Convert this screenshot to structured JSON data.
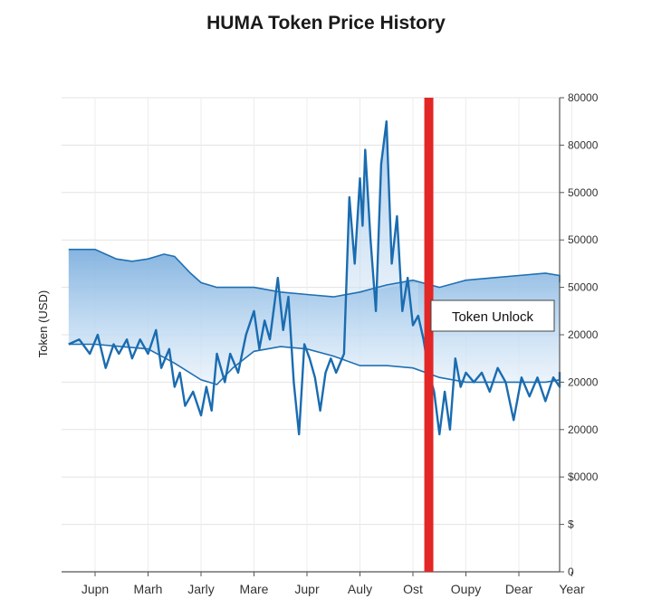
{
  "chart_data": {
    "type": "line",
    "title": "HUMA Token Price History",
    "ylabel": "Token (USD)",
    "xlabel": "",
    "x_ticks": [
      "Jupn",
      "Marh",
      "Jarly",
      "Mare",
      "Jupr",
      "Auly",
      "Ost",
      "Oupy",
      "Dear",
      "Year"
    ],
    "y_ticks": [
      "0",
      "$",
      "$0000",
      "20000",
      "20000",
      "20000",
      "50000",
      "50000",
      "50000",
      "80000",
      "80000"
    ],
    "ylim": [
      0,
      10
    ],
    "grid": true,
    "legend": "none",
    "annotation": {
      "label": "Token Unlock",
      "x": 6.3
    },
    "band_upper": {
      "x": [
        -0.5,
        0.0,
        0.4,
        0.7,
        1.0,
        1.3,
        1.5,
        1.8,
        2.0,
        2.3,
        2.5,
        3.0,
        3.5,
        4.0,
        4.5,
        5.0,
        5.5,
        6.0,
        6.5,
        7.0,
        7.5,
        8.0,
        8.5,
        8.8,
        9.0
      ],
      "y": [
        6.8,
        6.8,
        6.6,
        6.55,
        6.6,
        6.7,
        6.65,
        6.3,
        6.1,
        6.0,
        6.0,
        6.0,
        5.9,
        5.85,
        5.8,
        5.9,
        6.05,
        6.15,
        6.0,
        6.15,
        6.2,
        6.25,
        6.3,
        6.25,
        6.1
      ]
    },
    "band_lower": {
      "x": [
        -0.5,
        0.0,
        0.5,
        1.0,
        1.5,
        2.0,
        2.3,
        2.6,
        3.0,
        3.5,
        4.0,
        4.5,
        5.0,
        5.5,
        6.0,
        6.5,
        7.0,
        7.5,
        8.0,
        8.5,
        9.0
      ],
      "y": [
        4.8,
        4.8,
        4.75,
        4.7,
        4.4,
        4.05,
        3.95,
        4.3,
        4.65,
        4.75,
        4.7,
        4.55,
        4.35,
        4.35,
        4.3,
        4.1,
        4.0,
        4.0,
        4.0,
        4.0,
        4.05
      ]
    },
    "series": [
      {
        "values_x": [
          -0.5,
          -0.3,
          -0.1,
          0.05,
          0.2,
          0.35,
          0.45,
          0.6,
          0.7,
          0.85,
          1.0,
          1.15,
          1.25,
          1.4,
          1.5,
          1.6,
          1.7,
          1.85,
          2.0,
          2.1,
          2.2,
          2.3,
          2.45,
          2.55,
          2.7,
          2.85,
          3.0,
          3.1,
          3.2,
          3.3,
          3.45,
          3.55,
          3.65,
          3.75,
          3.85,
          3.95,
          4.05,
          4.15,
          4.25,
          4.35,
          4.45,
          4.55,
          4.7,
          4.8,
          4.9,
          5.0,
          5.05,
          5.1,
          5.2,
          5.3,
          5.4,
          5.5,
          5.6,
          5.7,
          5.8,
          5.9,
          6.0,
          6.1,
          6.2,
          6.3,
          6.4,
          6.5,
          6.6,
          6.7,
          6.8,
          6.9,
          7.0,
          7.15,
          7.3,
          7.45,
          7.6,
          7.75,
          7.9,
          8.05,
          8.2,
          8.35,
          8.5,
          8.65,
          8.8,
          8.95,
          9.0
        ],
        "values_y": [
          4.8,
          4.9,
          4.6,
          5.0,
          4.3,
          4.8,
          4.6,
          4.9,
          4.5,
          4.9,
          4.6,
          5.1,
          4.3,
          4.7,
          3.9,
          4.2,
          3.5,
          3.8,
          3.3,
          3.9,
          3.4,
          4.6,
          4.0,
          4.6,
          4.2,
          5.0,
          5.5,
          4.7,
          5.3,
          4.9,
          6.2,
          5.1,
          5.8,
          4.0,
          2.9,
          4.8,
          4.5,
          4.1,
          3.4,
          4.2,
          4.5,
          4.2,
          4.6,
          7.9,
          6.5,
          8.3,
          7.3,
          8.9,
          7.0,
          5.5,
          8.6,
          9.5,
          6.5,
          7.5,
          5.5,
          6.2,
          5.2,
          5.4,
          4.9,
          4.2,
          3.8,
          2.9,
          3.8,
          3.0,
          4.5,
          3.9,
          4.2,
          4.0,
          4.2,
          3.8,
          4.3,
          4.0,
          3.2,
          4.1,
          3.7,
          4.1,
          3.6,
          4.1,
          3.9,
          4.2,
          4.05
        ]
      }
    ]
  }
}
